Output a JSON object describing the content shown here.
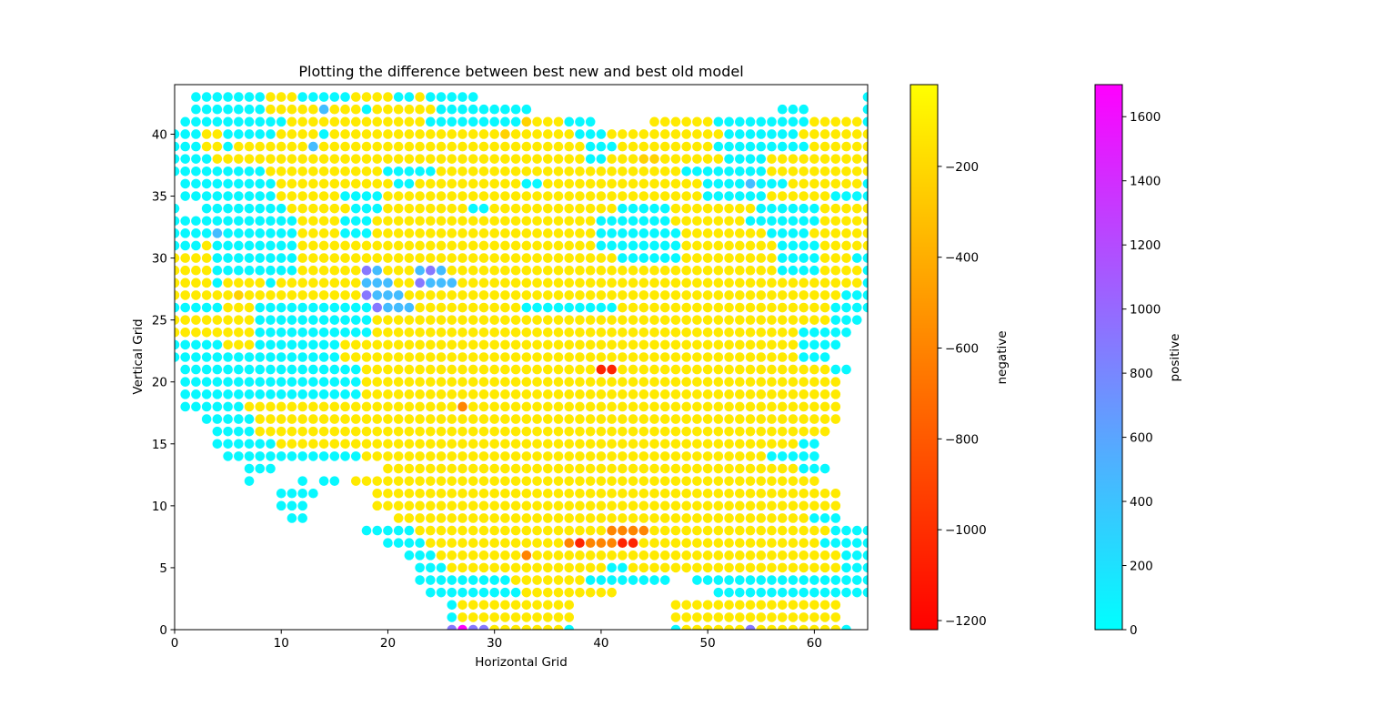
{
  "chart_data": {
    "type": "scatter",
    "title": "Plotting the difference between best new and best old model",
    "xlabel": "Horizontal Grid",
    "ylabel": "Vertical Grid",
    "xlim": [
      0,
      65
    ],
    "ylim": [
      0,
      44
    ],
    "xticks": [
      0,
      10,
      20,
      30,
      40,
      50,
      60
    ],
    "yticks": [
      0,
      5,
      10,
      15,
      20,
      25,
      30,
      35,
      40
    ],
    "marker": "circle",
    "grid": false,
    "value_code_note": "grid cell values encoded by code letter: a=50 (positive), b=450 (positive), p=900 (positive), m=1700 (positive), y=-120 (negative), g=-230 (negative), o=-380 (negative), d=-600 (negative), r=-1050 (negative); '.'=no point",
    "value_codes": {
      "a": 50,
      "b": 450,
      "p": 900,
      "m": 1700,
      "y": -120,
      "g": -230,
      "o": -380,
      "d": -600,
      "r": -1050
    },
    "grid_cells": [
      {
        "y": 43,
        "x0": 2,
        "row": "aaaaaaayyyaaaaayyyyaayaaaaa....................................aaayaaaa"
      },
      {
        "y": 42,
        "x0": 2,
        "row": "aaaaaaayyyyybyyyayyyyyyaaaaaaaaa.......................aaa.....ayyyyaaba"
      },
      {
        "y": 41,
        "x0": 1,
        "row": "aaaaaaaaaayyyyyyyyyyyyyaaaaaaaaagyyyaaa.....yyyyyyaaaaaaaaayyyyyaa"
      },
      {
        "y": 40,
        "x0": 0,
        "row": "aaayyaaaaayyyyayyyyyyyyyyyyyyyygyyyyyyaaayyyyyyyyyyyaaaaaaayyyyyyyy"
      },
      {
        "y": 39,
        "x0": 0,
        "row": "aaayyayyyyyyybyyyyyyyyyyyyyyyyyyyyyyyyyaaayyyyyyyyyaaaaaaaaayyyyyyyy"
      },
      {
        "y": 38,
        "x0": 0,
        "row": "aaaayyyyyyyyyyyyyyyyyyyyyyyyyyyyyyyyyyyaayyyggyyyyyyaaaayyyyyyyyyyyy"
      },
      {
        "y": 37,
        "x0": 0,
        "row": "aaaaaaaaayyyyyyyyyyyaaaaayyyyyyyyyyyyyyyyyyyyyyyaaaaaaaayyyyyyyyyyy"
      },
      {
        "y": 36,
        "x0": 1,
        "row": "aaaaaaaaayyyyyyyyyyyaayyyyyyyyyyaayyyyyyyyyyyyyyyaaaabaaayyyyyyyaaa"
      },
      {
        "y": 35,
        "x0": 1,
        "row": "aaaaaaaaayyyyyyaaaayyyyyyyyyyyyyyyyyyyyyyyyyyyyyyaaaaaayyyyyyaaaaaa"
      },
      {
        "y": 34,
        "x0": 0,
        "row": "a..aaaaaaaayyyyyyaaayyyyyyyyaayyyyyyyyyyyyaaaaayyyyyyyyaaaaaayyyyyaa"
      },
      {
        "y": 33,
        "x0": 0,
        "row": "aaaaaaaaaaaayyyyaaayyyyyyyyyyyyyyyyyyyyyaaaaaaayyyyyyyaaaaaaayyyyyyyb"
      },
      {
        "y": 32,
        "x0": 0,
        "row": "aaaabaaaaaaayyyyaaayyyyyyyyyyyyyyyyyyyyyaaaaaaaayyyyyyyyaaaayyyyyyyy"
      },
      {
        "y": 31,
        "x0": 0,
        "row": "aaayaaaaaaaayyyyyyyyyyyyyyyyyyyyyyyyyyyyaaaaaaaayyyyyyyyyaaaayyyyyyy"
      },
      {
        "y": 30,
        "x0": 0,
        "row": "yyyyaaaaaaaayyyyyyyyyyyyyyyyyyyyyyyyyyyyyyaaaaaayyyyyyyyyaaaayyyaaaa"
      },
      {
        "y": 29,
        "x0": 0,
        "row": "yyyyaaaaaaaayyyyyypbyyybpbyyyyyyyyyyyyyyyyyyyyyyyyyyyyyyyaaaayyyyaab"
      },
      {
        "y": 28,
        "x0": 0,
        "row": "yyyyayyyyayyyyyyyybbbyypbbbyyyyyyyyyyyyyyyyyyyyyyyyyyyyyyyyyyyyyyaaa"
      },
      {
        "y": 27,
        "x0": 0,
        "row": "yyyyyygyyyyyyyyyyypbbbyyyyyyyyyyyyyyyyyyyyyyyyyyyyyyyyyyyyyyyyyaaaa"
      },
      {
        "y": 26,
        "x0": 0,
        "row": "aaaaayyyaaaaaaaaaaapbbbyyyyyyyyyyaaaaaaaaayyyyyyyyyyyyyyyyyyyyaaaa"
      },
      {
        "y": 25,
        "x0": 0,
        "row": "yyyyyyyyaaaaaaaaaaayyyyyyyyyyyyyyyyyyyyyyyyyyyyyyyyyyyyyyyyyyyaaa"
      },
      {
        "y": 24,
        "x0": 0,
        "row": "yyyyyyyyaaaaaaaaaaayyyyyyyyyyyyyyyyyyyyyyyyyyyyyyyyyyyyyyyyaaaaa"
      },
      {
        "y": 23,
        "x0": 0,
        "row": "aaaaayyyaaaaaaaayyyyyyyyyyyyyyyyyyyyyyyyyyyyyyyyyyyyyyyyyyyaaaa"
      },
      {
        "y": 22,
        "x0": 0,
        "row": "aaaaaaaaaaaaaaaayyyyyyyyyyyyyyyyyyyyyyyyyyyyyyyyyyyyyyyyyyyaaa"
      },
      {
        "y": 21,
        "x0": 1,
        "row": "aaaaaaaaaaaaaaaaayyyyyyyyyyyyyyyyyyyyyyrryyyyyyyyyyyyyyyyyyyyaa"
      },
      {
        "y": 20,
        "x0": 1,
        "row": "aaaaaaaaaaaaaaaaayyyyyyyyyyyyyyyyyyyyyyyyyyyyyyyyyyyyyyyyyyyyy"
      },
      {
        "y": 19,
        "x0": 1,
        "row": "aaaaaaaaaaaaaaaaayyyyyyyyyyyyyyyyyyyyyyyyyyyyyyyyyyyyyyyyyyyyy"
      },
      {
        "y": 18,
        "x0": 1,
        "row": "aaaaaayyyyyyyyyyyyyyyyyyyydyyyyyyyyyyyyyyyyyyyyyyyyyyyyyyyyyyy"
      },
      {
        "y": 17,
        "x0": 3,
        "row": "aaaaayyyyyyyyyyyyyyyyyyyyyyyyyyyyyyyyyyyyyyyyyyyyyyyyyyyyyyy"
      },
      {
        "y": 16,
        "x0": 4,
        "row": "aaaayyyyyyyyyyyyyyyyyyyyyyyyyyyyyyyyyyyyyyyyyyyyyyyyyyyyyy"
      },
      {
        "y": 15,
        "x0": 4,
        "row": "aaaaaayyyyyyyyyyyyyyyyyyyyyyyyyyyyyyyyyyyyyyyyyyyyyyyyyaa"
      },
      {
        "y": 14,
        "x0": 5,
        "row": "aaaaaaaaaaaaayyyyyyyyyyyyyyyyyyyyyyyyyyyyyyyyyyyyyyaaaaa"
      },
      {
        "y": 13,
        "x0": 7,
        "row": "aaa..........yyyyyyyyyyyyyyyyyyyyyyyyyyyyyyyyyyyyyyyaaa"
      },
      {
        "y": 12,
        "x0": 7,
        "row": "a....a.aa.yyyyyyyyyyyyyyyyyyyyyyyyyyyyyyyyyyyyyyyyyyyy"
      },
      {
        "y": 11,
        "x0": 10,
        "row": "aaaa.....yyyyyyyyyyyyyyyyyyyyyyyyyyyyyyyyyyyyyyyyyyyy"
      },
      {
        "y": 10,
        "x0": 10,
        "row": "aaa......yyyyyyyyyyyyyyyyyyyyyyyyyyyyyyyyyyyyyyyyyyyy"
      },
      {
        "y": 9,
        "x0": 11,
        "row": "aa........yyyyyyyyyyyyyyyyyyyyyyyyyyyyyyyyyyyyyyyaaa"
      },
      {
        "y": 8,
        "x0": 18,
        "row": "aaaaayyyyyyyyyyyyyyyyyyddddyyyyyyyyyyyyyyyyyaaaaa"
      },
      {
        "y": 7,
        "x0": 20,
        "row": "aaaayyyyyyyyyyyyydrdddrryyyyyyyyyyyyyyyyyaaaaa"
      },
      {
        "y": 6,
        "x0": 22,
        "row": "aaayyyyyyyydyyyyyyyyyyyyyyyyyyyyyyyyyyyyyaaaa"
      },
      {
        "y": 5,
        "x0": 23,
        "row": "aaayyyyyyyyyyyyyyyaayyyyyyyyyyyyyyyyyyyyaaaa"
      },
      {
        "y": 4,
        "x0": 23,
        "row": "aaaaaaaaayyyyyyyaaaaaaaa..aaaaaaaaaaaaaaaaaaa"
      },
      {
        "y": 3,
        "x0": 24,
        "row": "aaaaaaaaayyyyyyyyy.........aaaaaaaaaaaaaaaaaaa"
      },
      {
        "y": 2,
        "x0": 26,
        "row": "ayyyyyyyyyyy.........yyyyyyyyyyyyyyyy"
      },
      {
        "y": 1,
        "x0": 26,
        "row": "ayyyyyyyyyyy.........yyyyyyyyyyyyyyyy"
      },
      {
        "y": 0,
        "x0": 26,
        "row": "pmppyyyyyyya.........ayyyyyypyyyyyyyya"
      }
    ],
    "colorbars": [
      {
        "label": "negative",
        "colormap": "autumn",
        "vmin": -1220,
        "vmax": -20,
        "ticks": [
          -1200,
          -1000,
          -800,
          -600,
          -400,
          -200
        ],
        "tick_labels": [
          "−1200",
          "−1000",
          "−800",
          "−600",
          "−400",
          "−200"
        ]
      },
      {
        "label": "positive",
        "colormap": "cool",
        "vmin": 0,
        "vmax": 1700,
        "ticks": [
          0,
          200,
          400,
          600,
          800,
          1000,
          1200,
          1400,
          1600
        ],
        "tick_labels": [
          "0",
          "200",
          "400",
          "600",
          "800",
          "1000",
          "1200",
          "1400",
          "1600"
        ]
      }
    ]
  }
}
